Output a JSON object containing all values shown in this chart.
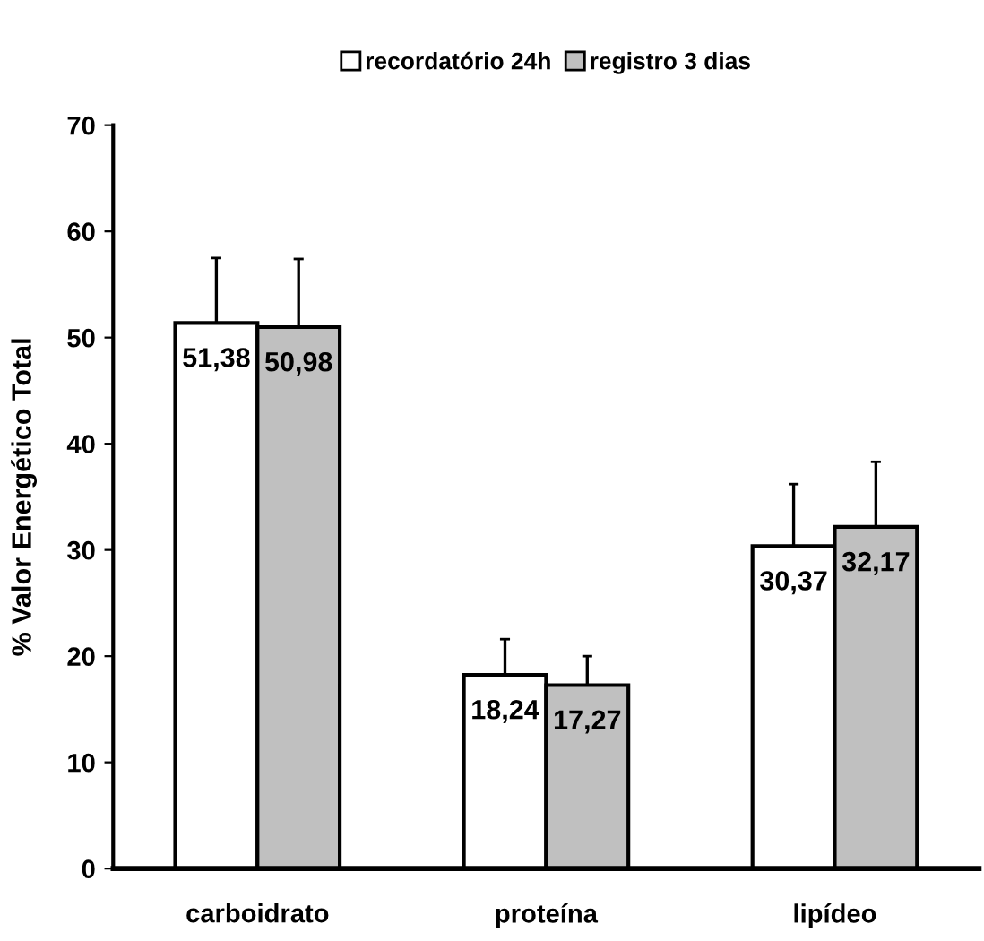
{
  "chart_data": {
    "type": "bar",
    "ylabel": "% Valor Energético Total",
    "categories": [
      "carboidrato",
      "proteína",
      "lipídeo"
    ],
    "series": [
      {
        "name": "recordatório 24h",
        "color": "#ffffff",
        "values": [
          51.38,
          18.24,
          30.37
        ],
        "value_labels": [
          "51,38",
          "18,24",
          "30,37"
        ],
        "errors": [
          [
            51.38,
            57.5
          ],
          [
            18.24,
            21.6
          ],
          [
            30.37,
            36.2
          ]
        ]
      },
      {
        "name": "registro 3 dias",
        "color": "#c0c0c0",
        "values": [
          50.98,
          17.27,
          32.17
        ],
        "value_labels": [
          "50,98",
          "17,27",
          "32,17"
        ],
        "errors": [
          [
            50.98,
            57.4
          ],
          [
            17.27,
            20.0
          ],
          [
            32.17,
            38.3
          ]
        ]
      }
    ],
    "ylim": [
      0,
      70
    ],
    "yticks": [
      0,
      10,
      20,
      30,
      40,
      50,
      60,
      70
    ],
    "grid": false,
    "legend": "top"
  }
}
